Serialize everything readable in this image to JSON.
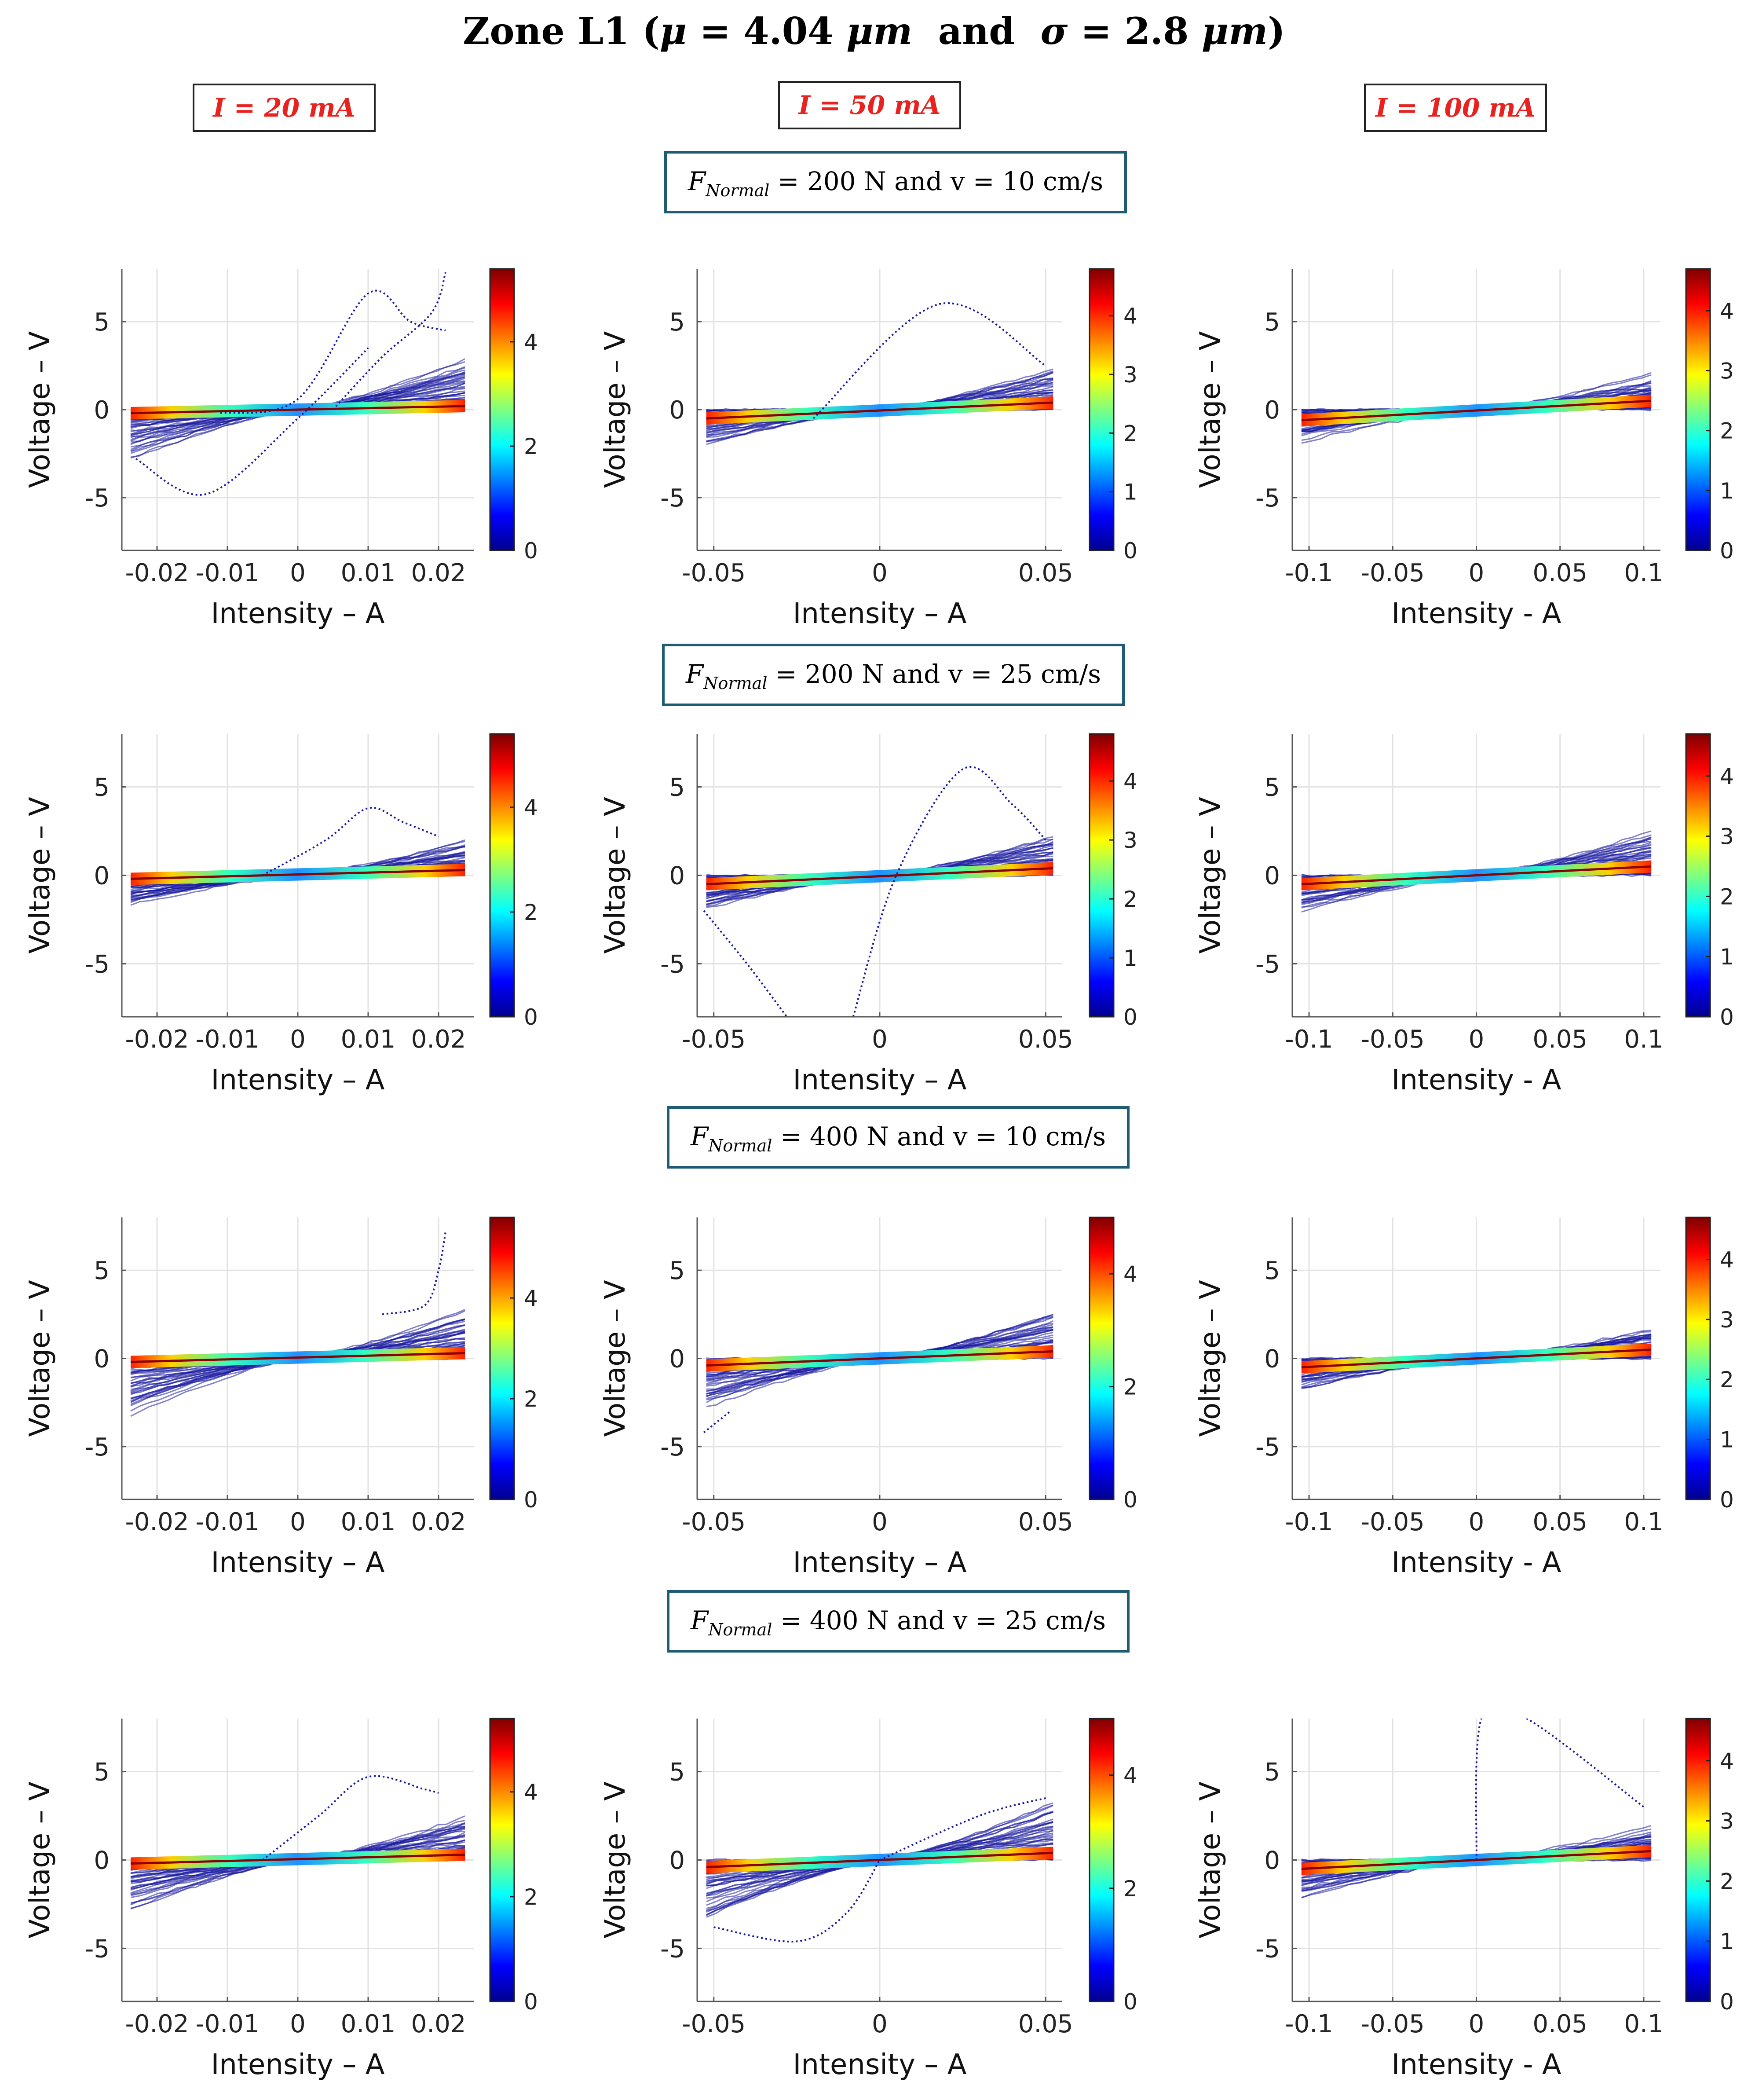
{
  "title": {
    "prefix": "Zone L1 (",
    "mu": "μ",
    "mu_value": " = 4.04 ",
    "unit1": "μm",
    "and": "  and  ",
    "sigma": "σ",
    "sigma_value": " = 2.8 ",
    "unit2": "μm",
    "suffix": ")"
  },
  "current_labels": [
    "I = 20 mA",
    "I = 50 mA",
    "I = 100 mA"
  ],
  "condition_labels": [
    {
      "F": "F",
      "sub": "Normal",
      "rest": " = 200 N  and  v = 10 cm/s"
    },
    {
      "F": "F",
      "sub": "Normal",
      "rest": " = 200 N  and  v = 25 cm/s"
    },
    {
      "F": "F",
      "sub": "Normal",
      "rest": " = 400 N  and  v = 10 cm/s"
    },
    {
      "F": "F",
      "sub": "Normal",
      "rest": " = 400 N  and  v = 25 cm/s"
    }
  ],
  "colors": {
    "current_label_text": "#e8231f",
    "condition_box_border": "#1f5c73",
    "trace_blue": "#1a1aa0",
    "grid": "#e2e2e2"
  },
  "chart_data": [
    {
      "type": "scatter",
      "row": 0,
      "col": 0,
      "xlabel": "Intensity – A",
      "ylabel": "Voltage – V",
      "xlim": [
        -0.025,
        0.025
      ],
      "ylim": [
        -8,
        8
      ],
      "xticks": [
        -0.02,
        -0.01,
        0,
        0.01,
        0.02
      ],
      "xtick_labels": [
        "-0.02",
        "-0.01",
        "0",
        "0.01",
        "0.02"
      ],
      "yticks": [
        -5,
        0,
        5
      ],
      "ytick_labels": [
        "-5",
        "0",
        "5"
      ],
      "colorbar": {
        "max": 5.4,
        "ticks": [
          0,
          2,
          4
        ],
        "labels": [
          "0",
          "2",
          "4"
        ]
      },
      "envelope": {
        "upper_at_xmax": 3.2,
        "lower_at_xmin": -3.0
      },
      "dense_trace": {
        "v_at_xmin": -0.2,
        "v_at_xmax": 0.2
      },
      "outliers": [
        [
          [
            -0.011,
            -0.2
          ],
          [
            0.0,
            0.6
          ],
          [
            0.01,
            6.6
          ],
          [
            0.016,
            5.0
          ],
          [
            0.021,
            4.5
          ]
        ],
        [
          [
            0.005,
            0.0
          ],
          [
            0.012,
            3.0
          ],
          [
            0.019,
            5.5
          ],
          [
            0.021,
            7.8
          ]
        ],
        [
          [
            -0.023,
            -2.8
          ],
          [
            -0.013,
            -4.8
          ],
          [
            0.0,
            -0.5
          ],
          [
            0.01,
            3.5
          ]
        ]
      ]
    },
    {
      "type": "scatter",
      "row": 0,
      "col": 1,
      "xlabel": "Intensity – A",
      "ylabel": "Voltage – V",
      "xlim": [
        -0.055,
        0.055
      ],
      "ylim": [
        -8,
        8
      ],
      "xticks": [
        -0.05,
        0,
        0.05
      ],
      "xtick_labels": [
        "-0.05",
        "0",
        "0.05"
      ],
      "yticks": [
        -5,
        0,
        5
      ],
      "ytick_labels": [
        "-5",
        "0",
        "5"
      ],
      "colorbar": {
        "max": 4.8,
        "ticks": [
          0,
          1,
          2,
          3,
          4
        ],
        "labels": [
          "0",
          "1",
          "2",
          "3",
          "4"
        ]
      },
      "envelope": {
        "upper_at_xmax": 2.6,
        "lower_at_xmin": -2.2
      },
      "dense_trace": {
        "v_at_xmin": -0.5,
        "v_at_xmax": 0.4
      },
      "outliers": [
        [
          [
            -0.02,
            -0.5
          ],
          [
            0.018,
            6.0
          ],
          [
            0.05,
            2.5
          ]
        ]
      ]
    },
    {
      "type": "scatter",
      "row": 0,
      "col": 2,
      "xlabel": "Intensity - A",
      "ylabel": "Voltage – V",
      "xlim": [
        -0.11,
        0.11
      ],
      "ylim": [
        -8,
        8
      ],
      "xticks": [
        -0.1,
        -0.05,
        0,
        0.05,
        0.1
      ],
      "xtick_labels": [
        "-0.1",
        "-0.05",
        "0",
        "0.05",
        "0.1"
      ],
      "yticks": [
        -5,
        0,
        5
      ],
      "ytick_labels": [
        "-5",
        "0",
        "5"
      ],
      "colorbar": {
        "max": 4.7,
        "ticks": [
          0,
          1,
          2,
          3,
          4
        ],
        "labels": [
          "0",
          "1",
          "2",
          "3",
          "4"
        ]
      },
      "envelope": {
        "upper_at_xmax": 2.1,
        "lower_at_xmin": -1.9
      },
      "dense_trace": {
        "v_at_xmin": -0.6,
        "v_at_xmax": 0.5
      },
      "outliers": []
    },
    {
      "type": "scatter",
      "row": 1,
      "col": 0,
      "xlabel": "Intensity – A",
      "ylabel": "Voltage – V",
      "xlim": [
        -0.025,
        0.025
      ],
      "ylim": [
        -8,
        8
      ],
      "xticks": [
        -0.02,
        -0.01,
        0,
        0.01,
        0.02
      ],
      "xtick_labels": [
        "-0.02",
        "-0.01",
        "0",
        "0.01",
        "0.02"
      ],
      "yticks": [
        -5,
        0,
        5
      ],
      "ytick_labels": [
        "-5",
        "0",
        "5"
      ],
      "colorbar": {
        "max": 5.4,
        "ticks": [
          0,
          2,
          4
        ],
        "labels": [
          "0",
          "2",
          "4"
        ]
      },
      "envelope": {
        "upper_at_xmax": 2.2,
        "lower_at_xmin": -2.0
      },
      "dense_trace": {
        "v_at_xmin": -0.2,
        "v_at_xmax": 0.3
      },
      "outliers": [
        [
          [
            -0.005,
            0.0
          ],
          [
            0.004,
            2.0
          ],
          [
            0.01,
            3.8
          ],
          [
            0.015,
            3.0
          ],
          [
            0.02,
            2.2
          ]
        ]
      ]
    },
    {
      "type": "scatter",
      "row": 1,
      "col": 1,
      "xlabel": "Intensity – A",
      "ylabel": "Voltage – V",
      "xlim": [
        -0.055,
        0.055
      ],
      "ylim": [
        -8,
        8
      ],
      "xticks": [
        -0.05,
        0,
        0.05
      ],
      "xtick_labels": [
        "-0.05",
        "0",
        "0.05"
      ],
      "yticks": [
        -5,
        0,
        5
      ],
      "ytick_labels": [
        "-5",
        "0",
        "5"
      ],
      "colorbar": {
        "max": 4.8,
        "ticks": [
          0,
          1,
          2,
          3,
          4
        ],
        "labels": [
          "0",
          "1",
          "2",
          "3",
          "4"
        ]
      },
      "envelope": {
        "upper_at_xmax": 2.6,
        "lower_at_xmin": -2.2
      },
      "dense_trace": {
        "v_at_xmin": -0.5,
        "v_at_xmax": 0.4
      },
      "outliers": [
        [
          [
            -0.053,
            -2.0
          ],
          [
            -0.04,
            -5.0
          ],
          [
            -0.028,
            -8.0
          ]
        ],
        [
          [
            -0.008,
            -8.0
          ],
          [
            0.005,
            0.0
          ],
          [
            0.025,
            6.0
          ],
          [
            0.04,
            4.0
          ],
          [
            0.05,
            2.0
          ]
        ]
      ]
    },
    {
      "type": "scatter",
      "row": 1,
      "col": 2,
      "xlabel": "Intensity - A",
      "ylabel": "Voltage – V",
      "xlim": [
        -0.11,
        0.11
      ],
      "ylim": [
        -8,
        8
      ],
      "xticks": [
        -0.1,
        -0.05,
        0,
        0.05,
        0.1
      ],
      "xtick_labels": [
        "-0.1",
        "-0.05",
        "0",
        "0.05",
        "0.1"
      ],
      "yticks": [
        -5,
        0,
        5
      ],
      "ytick_labels": [
        "-5",
        "0",
        "5"
      ],
      "colorbar": {
        "max": 4.7,
        "ticks": [
          0,
          1,
          2,
          3,
          4
        ],
        "labels": [
          "0",
          "1",
          "2",
          "3",
          "4"
        ]
      },
      "envelope": {
        "upper_at_xmax": 2.7,
        "lower_at_xmin": -2.2
      },
      "dense_trace": {
        "v_at_xmin": -0.5,
        "v_at_xmax": 0.5
      },
      "outliers": []
    },
    {
      "type": "scatter",
      "row": 2,
      "col": 0,
      "xlabel": "Intensity – A",
      "ylabel": "Voltage – V",
      "xlim": [
        -0.025,
        0.025
      ],
      "ylim": [
        -8,
        8
      ],
      "xticks": [
        -0.02,
        -0.01,
        0,
        0.01,
        0.02
      ],
      "xtick_labels": [
        "-0.02",
        "-0.01",
        "0",
        "0.01",
        "0.02"
      ],
      "yticks": [
        -5,
        0,
        5
      ],
      "ytick_labels": [
        "-5",
        "0",
        "5"
      ],
      "colorbar": {
        "max": 5.6,
        "ticks": [
          0,
          2,
          4
        ],
        "labels": [
          "0",
          "2",
          "4"
        ]
      },
      "envelope": {
        "upper_at_xmax": 3.0,
        "lower_at_xmin": -3.5
      },
      "dense_trace": {
        "v_at_xmin": -0.2,
        "v_at_xmax": 0.3
      },
      "outliers": [
        [
          [
            0.012,
            2.5
          ],
          [
            0.018,
            3.0
          ],
          [
            0.02,
            5.0
          ],
          [
            0.021,
            7.2
          ]
        ]
      ]
    },
    {
      "type": "scatter",
      "row": 2,
      "col": 1,
      "xlabel": "Intensity – A",
      "ylabel": "Voltage – V",
      "xlim": [
        -0.055,
        0.055
      ],
      "ylim": [
        -8,
        8
      ],
      "xticks": [
        -0.05,
        0,
        0.05
      ],
      "xtick_labels": [
        "-0.05",
        "0",
        "0.05"
      ],
      "yticks": [
        -5,
        0,
        5
      ],
      "ytick_labels": [
        "-5",
        "0",
        "5"
      ],
      "colorbar": {
        "max": 5.0,
        "ticks": [
          0,
          2,
          4
        ],
        "labels": [
          "0",
          "2",
          "4"
        ]
      },
      "envelope": {
        "upper_at_xmax": 2.9,
        "lower_at_xmin": -3.0
      },
      "dense_trace": {
        "v_at_xmin": -0.4,
        "v_at_xmax": 0.4
      },
      "outliers": [
        [
          [
            -0.053,
            -4.2
          ],
          [
            -0.045,
            -3.0
          ]
        ]
      ]
    },
    {
      "type": "scatter",
      "row": 2,
      "col": 2,
      "xlabel": "Intensity - A",
      "ylabel": "Voltage – V",
      "xlim": [
        -0.11,
        0.11
      ],
      "ylim": [
        -8,
        8
      ],
      "xticks": [
        -0.1,
        -0.05,
        0,
        0.05,
        0.1
      ],
      "xtick_labels": [
        "-0.1",
        "-0.05",
        "0",
        "0.05",
        "0.1"
      ],
      "yticks": [
        -5,
        0,
        5
      ],
      "ytick_labels": [
        "-5",
        "0",
        "5"
      ],
      "colorbar": {
        "max": 4.7,
        "ticks": [
          0,
          1,
          2,
          3,
          4
        ],
        "labels": [
          "0",
          "1",
          "2",
          "3",
          "4"
        ]
      },
      "envelope": {
        "upper_at_xmax": 2.0,
        "lower_at_xmin": -2.0
      },
      "dense_trace": {
        "v_at_xmin": -0.5,
        "v_at_xmax": 0.5
      },
      "outliers": []
    },
    {
      "type": "scatter",
      "row": 3,
      "col": 0,
      "xlabel": "Intensity – A",
      "ylabel": "Voltage – V",
      "xlim": [
        -0.025,
        0.025
      ],
      "ylim": [
        -8,
        8
      ],
      "xticks": [
        -0.02,
        -0.01,
        0,
        0.01,
        0.02
      ],
      "xtick_labels": [
        "-0.02",
        "-0.01",
        "0",
        "0.01",
        "0.02"
      ],
      "yticks": [
        -5,
        0,
        5
      ],
      "ytick_labels": [
        "-5",
        "0",
        "5"
      ],
      "colorbar": {
        "max": 5.4,
        "ticks": [
          0,
          2,
          4
        ],
        "labels": [
          "0",
          "2",
          "4"
        ]
      },
      "envelope": {
        "upper_at_xmax": 2.6,
        "lower_at_xmin": -3.0
      },
      "dense_trace": {
        "v_at_xmin": -0.2,
        "v_at_xmax": 0.3
      },
      "outliers": [
        [
          [
            -0.005,
            0.0
          ],
          [
            0.003,
            2.5
          ],
          [
            0.01,
            4.7
          ],
          [
            0.018,
            4.0
          ],
          [
            0.02,
            3.8
          ]
        ]
      ]
    },
    {
      "type": "scatter",
      "row": 3,
      "col": 1,
      "xlabel": "Intensity – A",
      "ylabel": "Voltage – V",
      "xlim": [
        -0.055,
        0.055
      ],
      "ylim": [
        -8,
        8
      ],
      "xticks": [
        -0.05,
        0,
        0.05
      ],
      "xtick_labels": [
        "-0.05",
        "0",
        "0.05"
      ],
      "yticks": [
        -5,
        0,
        5
      ],
      "ytick_labels": [
        "-5",
        "0",
        "5"
      ],
      "colorbar": {
        "max": 5.0,
        "ticks": [
          0,
          2,
          4
        ],
        "labels": [
          "0",
          "2",
          "4"
        ]
      },
      "envelope": {
        "upper_at_xmax": 3.5,
        "lower_at_xmin": -3.8
      },
      "dense_trace": {
        "v_at_xmin": -0.4,
        "v_at_xmax": 0.4
      },
      "outliers": [
        [
          [
            -0.05,
            -3.8
          ],
          [
            -0.025,
            -4.6
          ],
          [
            -0.01,
            -3.0
          ],
          [
            0.0,
            0.0
          ]
        ],
        [
          [
            0.0,
            0.0
          ],
          [
            0.03,
            2.5
          ],
          [
            0.05,
            3.5
          ]
        ]
      ]
    },
    {
      "type": "scatter",
      "row": 3,
      "col": 2,
      "xlabel": "Intensity - A",
      "ylabel": "Voltage – V",
      "xlim": [
        -0.11,
        0.11
      ],
      "ylim": [
        -8,
        8
      ],
      "xticks": [
        -0.1,
        -0.05,
        0,
        0.05,
        0.1
      ],
      "xtick_labels": [
        "-0.1",
        "-0.05",
        "0",
        "0.05",
        "0.1"
      ],
      "yticks": [
        -5,
        0,
        5
      ],
      "ytick_labels": [
        "-5",
        "0",
        "5"
      ],
      "colorbar": {
        "max": 4.7,
        "ticks": [
          0,
          1,
          2,
          3,
          4
        ],
        "labels": [
          "0",
          "1",
          "2",
          "3",
          "4"
        ]
      },
      "envelope": {
        "upper_at_xmax": 2.0,
        "lower_at_xmin": -2.3
      },
      "dense_trace": {
        "v_at_xmin": -0.5,
        "v_at_xmax": 0.5
      },
      "outliers": [
        [
          [
            0.0,
            0.0
          ],
          [
            0.003,
            8.0
          ],
          [
            0.03,
            8.0
          ],
          [
            0.1,
            3.0
          ]
        ]
      ]
    }
  ]
}
